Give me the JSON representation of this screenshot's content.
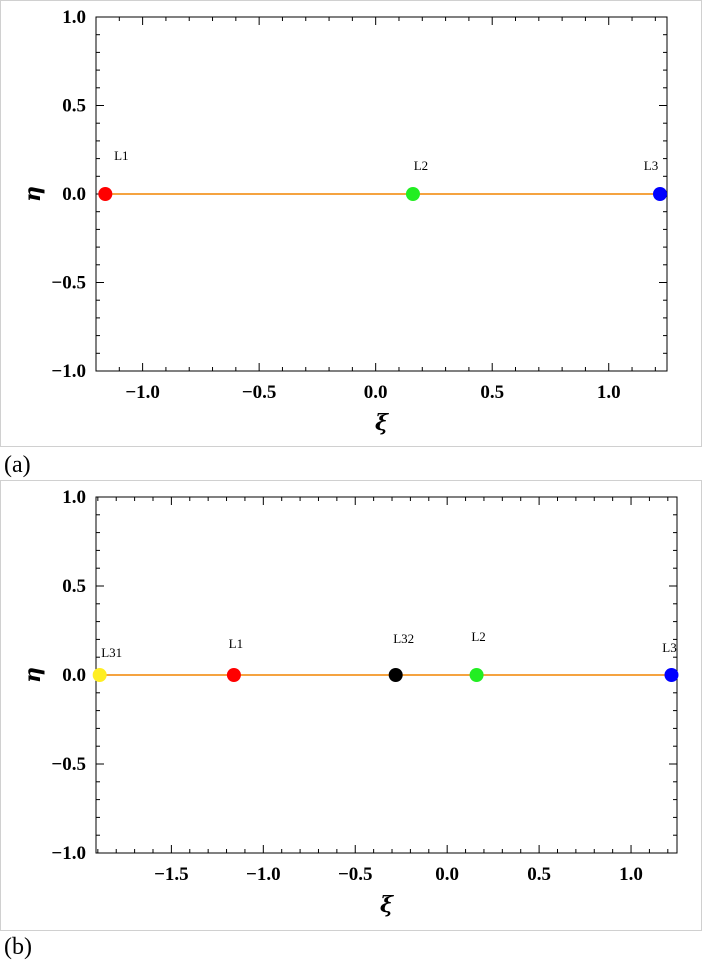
{
  "subplot_labels": [
    "(a)",
    "(b)"
  ],
  "chart_data": [
    {
      "type": "scatter",
      "xlabel": "ξ",
      "ylabel": "η",
      "xlim": [
        -1.2,
        1.25
      ],
      "ylim": [
        -1.0,
        1.0
      ],
      "xticks": [
        -1.0,
        -0.5,
        0.0,
        0.5,
        1.0
      ],
      "xtick_labels": [
        "−1.0",
        "−0.5",
        "0.0",
        "0.5",
        "1.0"
      ],
      "yticks": [
        1.0,
        0.5,
        0.0,
        -0.5,
        -1.0
      ],
      "ytick_labels": [
        "1.0",
        "0.5",
        "0.0",
        "−0.5",
        "−1.0"
      ],
      "line": {
        "y": 0.0,
        "color": "#f5a340"
      },
      "points": [
        {
          "label": "L1",
          "x": -1.16,
          "y": 0.0,
          "color": "#ff0000"
        },
        {
          "label": "L2",
          "x": 0.16,
          "y": 0.0,
          "color": "#22ee22"
        },
        {
          "label": "L3",
          "x": 1.22,
          "y": 0.0,
          "color": "#0000ff"
        }
      ]
    },
    {
      "type": "scatter",
      "xlabel": "ξ",
      "ylabel": "η",
      "xlim": [
        -1.91,
        1.25
      ],
      "ylim": [
        -1.0,
        1.0
      ],
      "xticks": [
        -1.5,
        -1.0,
        -0.5,
        0.0,
        0.5,
        1.0
      ],
      "xtick_labels": [
        "−1.5",
        "−1.0",
        "−0.5",
        "0.0",
        "0.5",
        "1.0"
      ],
      "yticks": [
        1.0,
        0.5,
        0.0,
        -0.5,
        -1.0
      ],
      "ytick_labels": [
        "1.0",
        "0.5",
        "0.0",
        "−0.5",
        "−1.0"
      ],
      "line": {
        "y": 0.0,
        "color": "#f5a340"
      },
      "points": [
        {
          "label": "L31",
          "x": -1.89,
          "y": 0.0,
          "color": "#ffee22"
        },
        {
          "label": "L1",
          "x": -1.16,
          "y": 0.0,
          "color": "#ff0000"
        },
        {
          "label": "L32",
          "x": -0.28,
          "y": 0.0,
          "color": "#000000"
        },
        {
          "label": "L2",
          "x": 0.16,
          "y": 0.0,
          "color": "#22ee22"
        },
        {
          "label": "L3",
          "x": 1.22,
          "y": 0.0,
          "color": "#0000ff"
        }
      ]
    }
  ]
}
